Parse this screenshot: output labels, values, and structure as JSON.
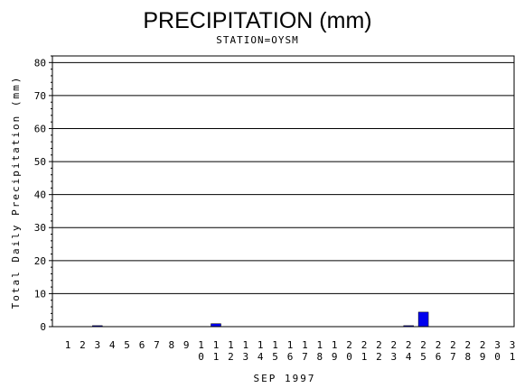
{
  "chart_data": {
    "type": "bar",
    "title": "PRECIPITATION (mm)",
    "subtitle": "STATION=OYSM",
    "xlabel": "SEP 1997",
    "ylabel": "Total Daily Precipitation (mm)",
    "ylim": [
      0,
      82
    ],
    "yticks": [
      0,
      10,
      20,
      30,
      40,
      50,
      60,
      70,
      80
    ],
    "grid": true,
    "categories": [
      "1",
      "2",
      "3",
      "4",
      "5",
      "6",
      "7",
      "8",
      "9",
      "10",
      "11",
      "12",
      "13",
      "14",
      "15",
      "16",
      "17",
      "18",
      "19",
      "20",
      "21",
      "22",
      "23",
      "24",
      "25",
      "26",
      "27",
      "28",
      "29",
      "30",
      "31"
    ],
    "values": [
      0,
      0,
      0.3,
      0,
      0,
      0,
      0,
      0,
      0,
      0,
      0.9,
      0,
      0,
      0,
      0,
      0,
      0,
      0,
      0,
      0,
      0,
      0,
      0,
      0.3,
      4.4,
      0,
      0,
      0,
      0,
      0,
      0
    ],
    "bar_color": "#0000ee"
  }
}
